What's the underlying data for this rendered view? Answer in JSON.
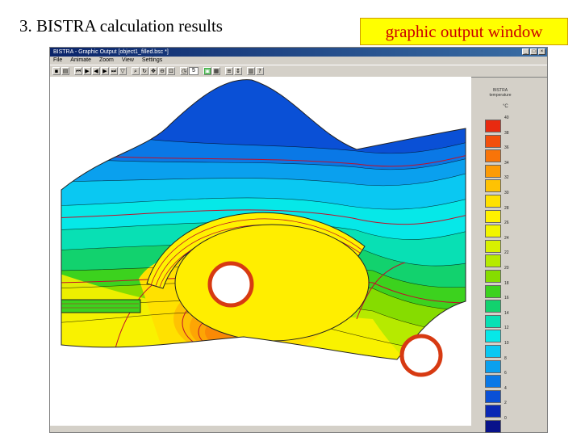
{
  "slide": {
    "title": "3. BISTRA calculation results",
    "callout": "graphic output window"
  },
  "window": {
    "title": "BISTRA - Graphic Output [object1_filled.bsc *]",
    "menu": [
      "File",
      "Animate",
      "Zoom",
      "View",
      "Settings"
    ],
    "toolbar_value": "5"
  },
  "legend": {
    "title": "BISTRA temperature",
    "unit": "°C",
    "levels": [
      {
        "label": "40",
        "color": "#e82a10"
      },
      {
        "label": "38",
        "color": "#f24f0c"
      },
      {
        "label": "36",
        "color": "#f87408"
      },
      {
        "label": "34",
        "color": "#fc9b06"
      },
      {
        "label": "32",
        "color": "#fec203"
      },
      {
        "label": "30",
        "color": "#ffe100"
      },
      {
        "label": "28",
        "color": "#fff200"
      },
      {
        "label": "26",
        "color": "#f2f500"
      },
      {
        "label": "24",
        "color": "#d8f000"
      },
      {
        "label": "22",
        "color": "#b6ea00"
      },
      {
        "label": "20",
        "color": "#86dc00"
      },
      {
        "label": "18",
        "color": "#3cd21e"
      },
      {
        "label": "16",
        "color": "#12d26e"
      },
      {
        "label": "14",
        "color": "#08e0b4"
      },
      {
        "label": "12",
        "color": "#06e8e8"
      },
      {
        "label": "10",
        "color": "#0ac8f2"
      },
      {
        "label": "8",
        "color": "#0aa0ee"
      },
      {
        "label": "6",
        "color": "#0a78e6"
      },
      {
        "label": "4",
        "color": "#0a50d6"
      },
      {
        "label": "2",
        "color": "#0a28b4"
      },
      {
        "label": "0",
        "color": "#08128a"
      }
    ]
  }
}
